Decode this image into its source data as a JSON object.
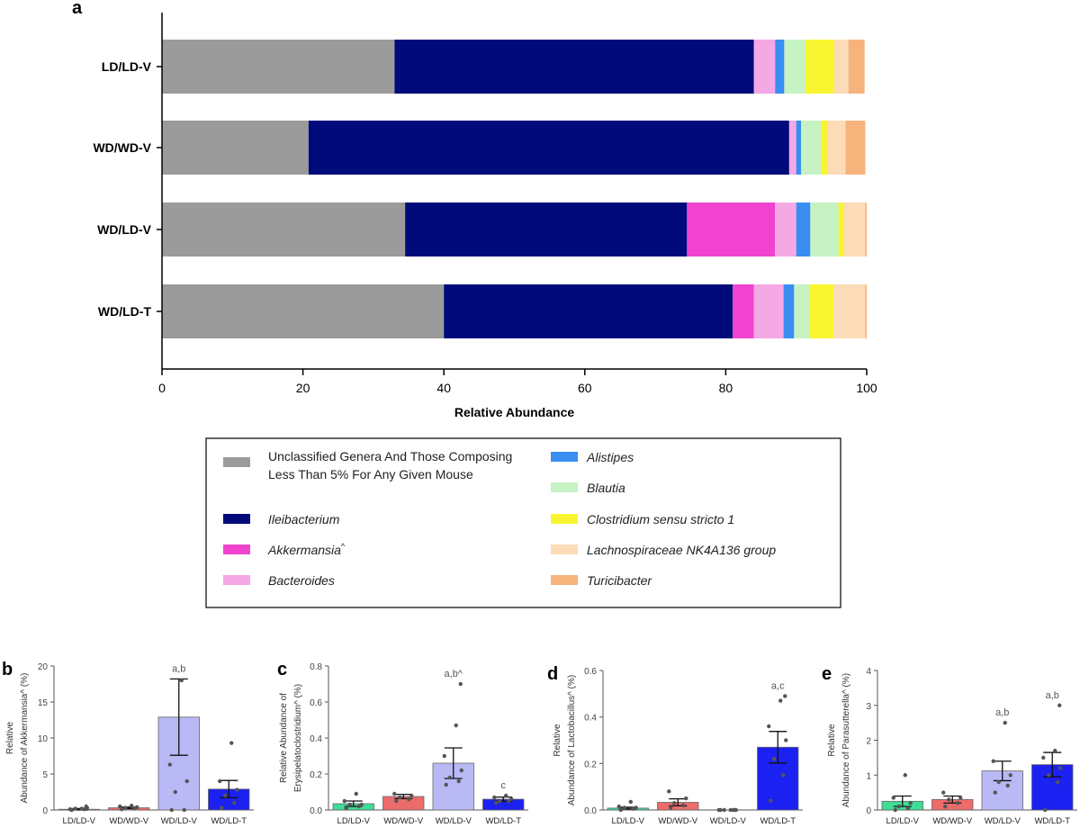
{
  "colors": {
    "Unclassified": "#9b9b9b",
    "Ileibacterium": "#000a7a",
    "Akkermansia": "#f043cf",
    "Bacteroides": "#f4a8e4",
    "Alistipes": "#3a8ef2",
    "Blautia": "#c6f2c4",
    "Clostridium": "#f8f530",
    "Lachnospiraceae": "#fcdbb8",
    "Turicibacter": "#f7b37c",
    "bar_LD_LD_V": "#3fdc98",
    "bar_WD_WD_V": "#ec6b6b",
    "bar_WD_LD_V": "#b9b9f6",
    "bar_WD_LD_T": "#1b21f0"
  },
  "panel_a": {
    "panel_label": "a",
    "xlabel": "Relative Abundance",
    "xlim": [
      0,
      100
    ],
    "xticks": [
      "0",
      "20",
      "40",
      "60",
      "80",
      "100"
    ],
    "legend": [
      {
        "key": "Unclassified",
        "lines": [
          "Unclassified Genera And Those Composing",
          "Less Than 5% For Any Given Mouse"
        ],
        "italic": false,
        "caret": false
      },
      {
        "key": "Ileibacterium",
        "lines": [
          "Ileibacterium"
        ],
        "italic": true,
        "caret": false
      },
      {
        "key": "Akkermansia",
        "lines": [
          "Akkermansia"
        ],
        "italic": true,
        "caret": true
      },
      {
        "key": "Bacteroides",
        "lines": [
          "Bacteroides"
        ],
        "italic": true,
        "caret": false
      },
      {
        "key": "Alistipes",
        "lines": [
          "Alistipes"
        ],
        "italic": true,
        "caret": false
      },
      {
        "key": "Blautia",
        "lines": [
          "Blautia"
        ],
        "italic": true,
        "caret": false
      },
      {
        "key": "Clostridium",
        "lines": [
          "Clostridium sensu stricto 1"
        ],
        "italic": true,
        "caret": false
      },
      {
        "key": "Lachnospiraceae",
        "lines": [
          "Lachnospiraceae NK4A136 group"
        ],
        "italic": true,
        "caret": false
      },
      {
        "key": "Turicibacter",
        "lines": [
          "Turicibacter"
        ],
        "italic": true,
        "caret": false
      }
    ],
    "caret_symbol": "^"
  },
  "chart_data": [
    {
      "type": "bar",
      "orientation": "horizontal-stacked",
      "categories": [
        "LD/LD-V",
        "WD/WD-V",
        "WD/LD-V",
        "WD/LD-T"
      ],
      "xlabel": "Relative Abundance",
      "xlim": [
        0,
        100
      ],
      "series": [
        {
          "key": "Unclassified",
          "values": [
            33.0,
            20.8,
            34.5,
            40.0
          ]
        },
        {
          "key": "Ileibacterium",
          "values": [
            51.0,
            68.2,
            40.0,
            41.0
          ]
        },
        {
          "key": "Akkermansia",
          "values": [
            0.0,
            0.0,
            12.5,
            3.0
          ]
        },
        {
          "key": "Bacteroides",
          "values": [
            3.0,
            1.0,
            3.0,
            4.2
          ]
        },
        {
          "key": "Alistipes",
          "values": [
            1.3,
            0.7,
            2.0,
            1.5
          ]
        },
        {
          "key": "Blautia",
          "values": [
            3.0,
            2.8,
            4.0,
            2.2
          ]
        },
        {
          "key": "Clostridium",
          "values": [
            4.1,
            1.0,
            0.8,
            3.4
          ]
        },
        {
          "key": "Lachnospiraceae",
          "values": [
            2.0,
            2.5,
            3.0,
            4.5
          ]
        },
        {
          "key": "Turicibacter",
          "values": [
            2.3,
            2.8,
            0.2,
            0.2
          ]
        }
      ]
    },
    {
      "type": "bar",
      "panel_label": "b",
      "ylabel_lines": [
        "Relative",
        "Abundance of Akkermansia^ (%)"
      ],
      "ylim": [
        0,
        20
      ],
      "yticks": [
        "0",
        "5",
        "10",
        "15",
        "20"
      ],
      "categories": [
        "LD/LD-V",
        "WD/WD-V",
        "WD/LD-V",
        "WD/LD-T"
      ],
      "values": [
        0.1,
        0.3,
        12.9,
        2.9
      ],
      "errors": [
        0.1,
        0.1,
        5.3,
        1.2
      ],
      "annotations": [
        "",
        "",
        "a,b",
        ""
      ],
      "points": [
        [
          0,
          0.1,
          0.2,
          0.3,
          0.1,
          0.2,
          0.5
        ],
        [
          0.1,
          0.2,
          0.3,
          0.4,
          0.5,
          0.6
        ],
        [
          0,
          0,
          2.5,
          4.0,
          6.3,
          18.0
        ],
        [
          0.3,
          1.0,
          2.0,
          2.8,
          4.0,
          9.3
        ]
      ]
    },
    {
      "type": "bar",
      "panel_label": "c",
      "ylabel_lines": [
        "Relative Abundance of",
        "Erysipelatoclostridium^ (%)"
      ],
      "ylim": [
        0,
        0.8
      ],
      "yticks": [
        "0.0",
        "0.2",
        "0.4",
        "0.6",
        "0.8"
      ],
      "categories": [
        "LD/LD-V",
        "WD/WD-V",
        "WD/LD-V",
        "WD/LD-T"
      ],
      "values": [
        0.035,
        0.075,
        0.26,
        0.06
      ],
      "errors": [
        0.015,
        0.012,
        0.085,
        0.012
      ],
      "annotations": [
        "",
        "",
        "a,b^",
        "c"
      ],
      "points": [
        [
          0.01,
          0.02,
          0.03,
          0.03,
          0.05,
          0.09
        ],
        [
          0.05,
          0.06,
          0.07,
          0.08,
          0.09
        ],
        [
          0.14,
          0.16,
          0.18,
          0.22,
          0.3,
          0.47,
          0.7
        ],
        [
          0.04,
          0.05,
          0.05,
          0.06,
          0.07,
          0.08
        ]
      ]
    },
    {
      "type": "bar",
      "panel_label": "d",
      "ylabel_lines": [
        "Relative",
        "Abundance of Lactobacillus^ (%)"
      ],
      "ylim": [
        0,
        0.6
      ],
      "yticks": [
        "0.0",
        "0.2",
        "0.4",
        "0.6"
      ],
      "categories": [
        "LD/LD-V",
        "WD/WD-V",
        "WD/LD-V",
        "WD/LD-T"
      ],
      "values": [
        0.008,
        0.033,
        0.0,
        0.27
      ],
      "errors": [
        0.004,
        0.015,
        0.0,
        0.068
      ],
      "annotations": [
        "",
        "",
        "",
        "a,c"
      ],
      "points": [
        [
          0.0,
          0.005,
          0.01,
          0.01,
          0.015,
          0.035
        ],
        [
          0.01,
          0.02,
          0.03,
          0.05,
          0.08
        ],
        [
          0,
          0,
          0,
          0,
          0,
          0,
          0
        ],
        [
          0.04,
          0.15,
          0.22,
          0.3,
          0.36,
          0.47,
          0.49
        ]
      ]
    },
    {
      "type": "bar",
      "panel_label": "e",
      "ylabel_lines": [
        "Relative",
        "Abundance of Parasutterella^ (%)"
      ],
      "ylim": [
        0,
        4
      ],
      "yticks": [
        "0",
        "1",
        "2",
        "3",
        "4"
      ],
      "categories": [
        "LD/LD-V",
        "WD/WD-V",
        "WD/LD-V",
        "WD/LD-T"
      ],
      "values": [
        0.25,
        0.3,
        1.12,
        1.3
      ],
      "errors": [
        0.15,
        0.1,
        0.28,
        0.35
      ],
      "annotations": [
        "",
        "",
        "a,b",
        "a,b"
      ],
      "points": [
        [
          0.0,
          0.05,
          0.1,
          0.2,
          0.35,
          1.0
        ],
        [
          0.1,
          0.2,
          0.3,
          0.35,
          0.5
        ],
        [
          0.5,
          0.7,
          0.8,
          1.0,
          1.4,
          2.5
        ],
        [
          0.0,
          0.8,
          1.0,
          1.2,
          1.5,
          1.7,
          3.0
        ]
      ]
    }
  ]
}
